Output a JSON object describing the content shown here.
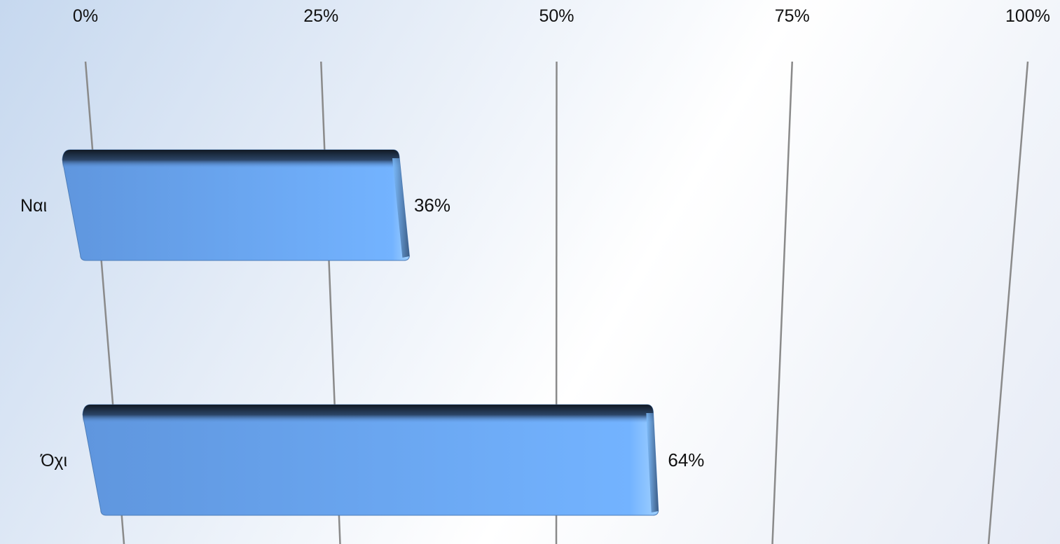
{
  "chart_data": {
    "type": "bar",
    "orientation": "horizontal",
    "style": "3d-perspective",
    "categories": [
      "Ναι",
      "Όχι"
    ],
    "values": [
      36,
      64
    ],
    "data_labels": [
      "36%",
      "64%"
    ],
    "xlim": [
      0,
      100
    ],
    "x_ticks": [
      0,
      25,
      50,
      75,
      100
    ],
    "x_tick_labels": [
      "0%",
      "25%",
      "50%",
      "75%",
      "100%"
    ],
    "x_axis_position": "top",
    "grid": true,
    "legend": "none",
    "title": "",
    "xlabel": "",
    "ylabel": "",
    "colors": {
      "bar_face_left": "#5f96de",
      "bar_face_right": "#73b3ff",
      "bar_top_edge": "#111a24",
      "gridline": "#8a8a8a"
    }
  }
}
